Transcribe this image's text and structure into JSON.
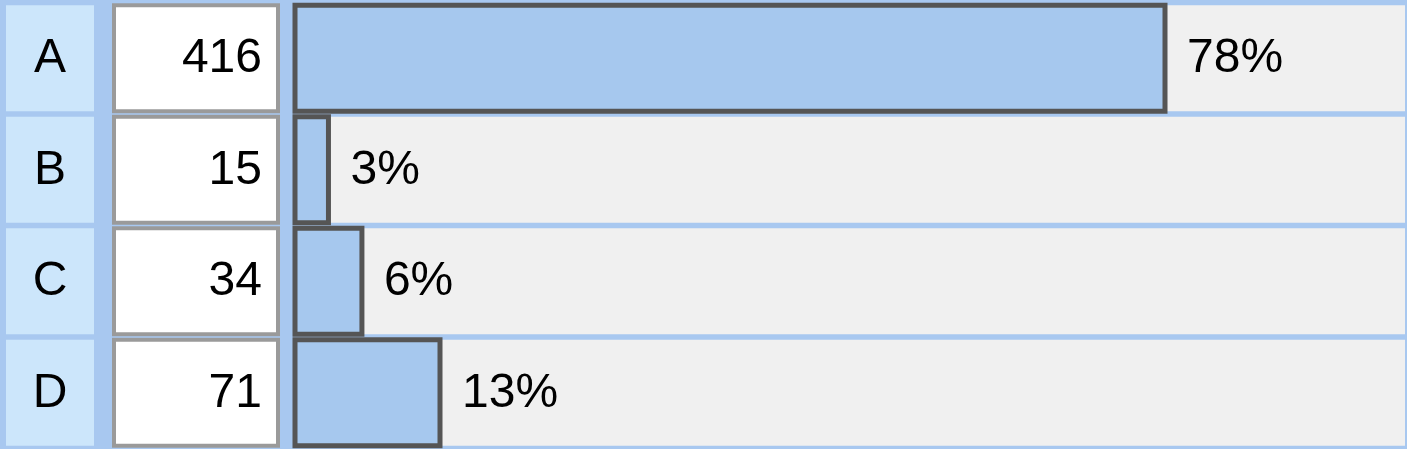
{
  "chart_data": {
    "type": "bar",
    "orientation": "horizontal",
    "categories": [
      "A",
      "B",
      "C",
      "D"
    ],
    "values": [
      78,
      3,
      6,
      13
    ],
    "value_labels": [
      "78%",
      "3%",
      "6%",
      "13%"
    ],
    "annotations": [
      "416",
      "15",
      "34",
      "71"
    ],
    "color": "#a6c8ee"
  }
}
